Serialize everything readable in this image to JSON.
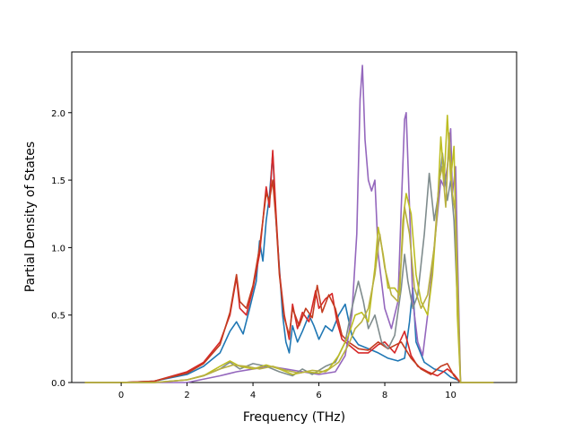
{
  "chart_data": {
    "type": "line",
    "title": "",
    "xlabel": "Frequency (THz)",
    "ylabel": "Partial Density of States",
    "xlim": [
      -1.5,
      12.0
    ],
    "ylim": [
      0,
      2.45
    ],
    "xticks": [
      0,
      2,
      4,
      6,
      8,
      10
    ],
    "yticks": [
      0.0,
      0.5,
      1.0,
      1.5,
      2.0
    ],
    "xtick_labels": [
      "0",
      "2",
      "4",
      "6",
      "8",
      "10"
    ],
    "ytick_labels": [
      "0.0",
      "0.5",
      "1.0",
      "1.5",
      "2.0"
    ],
    "grid": false,
    "legend": "none",
    "series": [
      {
        "color": "#1f77b4",
        "points": [
          [
            -1.1,
            0
          ],
          [
            0,
            0
          ],
          [
            1,
            0.01
          ],
          [
            2,
            0.06
          ],
          [
            2.5,
            0.12
          ],
          [
            3,
            0.22
          ],
          [
            3.3,
            0.38
          ],
          [
            3.5,
            0.45
          ],
          [
            3.7,
            0.36
          ],
          [
            3.9,
            0.55
          ],
          [
            4.1,
            0.75
          ],
          [
            4.2,
            1.05
          ],
          [
            4.3,
            0.9
          ],
          [
            4.4,
            1.2
          ],
          [
            4.5,
            1.38
          ],
          [
            4.6,
            1.7
          ],
          [
            4.7,
            1.2
          ],
          [
            4.8,
            0.85
          ],
          [
            4.9,
            0.5
          ],
          [
            5.0,
            0.3
          ],
          [
            5.1,
            0.22
          ],
          [
            5.2,
            0.42
          ],
          [
            5.35,
            0.3
          ],
          [
            5.5,
            0.38
          ],
          [
            5.7,
            0.5
          ],
          [
            5.85,
            0.42
          ],
          [
            6.0,
            0.32
          ],
          [
            6.2,
            0.42
          ],
          [
            6.4,
            0.38
          ],
          [
            6.6,
            0.5
          ],
          [
            6.8,
            0.58
          ],
          [
            7.0,
            0.35
          ],
          [
            7.2,
            0.28
          ],
          [
            7.5,
            0.25
          ],
          [
            7.8,
            0.22
          ],
          [
            8.1,
            0.18
          ],
          [
            8.4,
            0.16
          ],
          [
            8.6,
            0.18
          ],
          [
            8.75,
            0.45
          ],
          [
            8.85,
            0.7
          ],
          [
            8.95,
            0.3
          ],
          [
            9.2,
            0.15
          ],
          [
            9.5,
            0.1
          ],
          [
            9.8,
            0.08
          ],
          [
            10.0,
            0.04
          ],
          [
            10.2,
            0.02
          ],
          [
            10.3,
            0
          ],
          [
            11.3,
            0
          ]
        ]
      },
      {
        "color": "#d62728",
        "points": [
          [
            -1.1,
            0
          ],
          [
            0,
            0
          ],
          [
            1,
            0.01
          ],
          [
            2,
            0.08
          ],
          [
            2.5,
            0.15
          ],
          [
            3,
            0.3
          ],
          [
            3.3,
            0.5
          ],
          [
            3.5,
            0.78
          ],
          [
            3.6,
            0.55
          ],
          [
            3.8,
            0.5
          ],
          [
            4.0,
            0.7
          ],
          [
            4.2,
            0.95
          ],
          [
            4.4,
            1.45
          ],
          [
            4.5,
            1.3
          ],
          [
            4.6,
            1.72
          ],
          [
            4.7,
            1.25
          ],
          [
            4.8,
            0.82
          ],
          [
            4.95,
            0.5
          ],
          [
            5.1,
            0.32
          ],
          [
            5.2,
            0.58
          ],
          [
            5.35,
            0.4
          ],
          [
            5.5,
            0.52
          ],
          [
            5.7,
            0.45
          ],
          [
            5.9,
            0.68
          ],
          [
            6.0,
            0.55
          ],
          [
            6.2,
            0.62
          ],
          [
            6.4,
            0.66
          ],
          [
            6.55,
            0.45
          ],
          [
            6.7,
            0.32
          ],
          [
            6.9,
            0.28
          ],
          [
            7.2,
            0.22
          ],
          [
            7.5,
            0.22
          ],
          [
            7.8,
            0.28
          ],
          [
            8.0,
            0.3
          ],
          [
            8.3,
            0.22
          ],
          [
            8.6,
            0.38
          ],
          [
            8.8,
            0.2
          ],
          [
            9.0,
            0.12
          ],
          [
            9.3,
            0.08
          ],
          [
            9.6,
            0.05
          ],
          [
            9.9,
            0.1
          ],
          [
            10.1,
            0.06
          ],
          [
            10.3,
            0
          ],
          [
            11.3,
            0
          ]
        ]
      },
      {
        "color": "#c33c20",
        "points": [
          [
            -1.1,
            0
          ],
          [
            0,
            0
          ],
          [
            1,
            0.01
          ],
          [
            2,
            0.07
          ],
          [
            2.5,
            0.14
          ],
          [
            3,
            0.28
          ],
          [
            3.3,
            0.52
          ],
          [
            3.5,
            0.8
          ],
          [
            3.6,
            0.6
          ],
          [
            3.8,
            0.55
          ],
          [
            4.0,
            0.72
          ],
          [
            4.2,
            1.0
          ],
          [
            4.4,
            1.4
          ],
          [
            4.5,
            1.35
          ],
          [
            4.6,
            1.5
          ],
          [
            4.7,
            1.2
          ],
          [
            4.8,
            0.8
          ],
          [
            4.95,
            0.48
          ],
          [
            5.1,
            0.35
          ],
          [
            5.2,
            0.55
          ],
          [
            5.4,
            0.42
          ],
          [
            5.6,
            0.55
          ],
          [
            5.8,
            0.48
          ],
          [
            5.95,
            0.72
          ],
          [
            6.1,
            0.52
          ],
          [
            6.3,
            0.65
          ],
          [
            6.5,
            0.55
          ],
          [
            6.7,
            0.35
          ],
          [
            6.9,
            0.3
          ],
          [
            7.2,
            0.25
          ],
          [
            7.5,
            0.24
          ],
          [
            7.8,
            0.3
          ],
          [
            8.1,
            0.25
          ],
          [
            8.5,
            0.3
          ],
          [
            8.8,
            0.18
          ],
          [
            9.1,
            0.1
          ],
          [
            9.4,
            0.06
          ],
          [
            9.7,
            0.12
          ],
          [
            9.9,
            0.14
          ],
          [
            10.1,
            0.05
          ],
          [
            10.3,
            0
          ],
          [
            11.3,
            0
          ]
        ]
      },
      {
        "color": "#9467bd",
        "points": [
          [
            -1.1,
            0
          ],
          [
            0,
            0
          ],
          [
            2,
            0
          ],
          [
            3,
            0.05
          ],
          [
            3.5,
            0.08
          ],
          [
            4,
            0.1
          ],
          [
            4.5,
            0.12
          ],
          [
            5,
            0.1
          ],
          [
            5.5,
            0.08
          ],
          [
            6,
            0.06
          ],
          [
            6.5,
            0.08
          ],
          [
            6.8,
            0.2
          ],
          [
            7.0,
            0.5
          ],
          [
            7.15,
            1.1
          ],
          [
            7.25,
            2.1
          ],
          [
            7.32,
            2.35
          ],
          [
            7.4,
            1.8
          ],
          [
            7.5,
            1.5
          ],
          [
            7.6,
            1.42
          ],
          [
            7.7,
            1.5
          ],
          [
            7.8,
            0.95
          ],
          [
            8.0,
            0.55
          ],
          [
            8.2,
            0.4
          ],
          [
            8.4,
            0.6
          ],
          [
            8.5,
            1.3
          ],
          [
            8.6,
            1.95
          ],
          [
            8.65,
            2.0
          ],
          [
            8.75,
            1.3
          ],
          [
            8.85,
            0.6
          ],
          [
            9.0,
            0.3
          ],
          [
            9.15,
            0.2
          ],
          [
            9.3,
            0.5
          ],
          [
            9.5,
            1.0
          ],
          [
            9.7,
            1.5
          ],
          [
            9.8,
            1.45
          ],
          [
            9.9,
            1.6
          ],
          [
            10.0,
            1.88
          ],
          [
            10.05,
            1.4
          ],
          [
            10.15,
            1.6
          ],
          [
            10.2,
            1.0
          ],
          [
            10.3,
            0
          ],
          [
            11.3,
            0
          ]
        ]
      },
      {
        "color": "#7f8c8d",
        "points": [
          [
            -1.1,
            0
          ],
          [
            0,
            0
          ],
          [
            1,
            0
          ],
          [
            2,
            0.02
          ],
          [
            2.5,
            0.05
          ],
          [
            3,
            0.1
          ],
          [
            3.3,
            0.15
          ],
          [
            3.6,
            0.1
          ],
          [
            4,
            0.14
          ],
          [
            4.4,
            0.12
          ],
          [
            4.8,
            0.08
          ],
          [
            5.2,
            0.05
          ],
          [
            5.5,
            0.1
          ],
          [
            5.8,
            0.06
          ],
          [
            6.2,
            0.12
          ],
          [
            6.5,
            0.15
          ],
          [
            6.8,
            0.3
          ],
          [
            7.0,
            0.55
          ],
          [
            7.2,
            0.75
          ],
          [
            7.35,
            0.6
          ],
          [
            7.5,
            0.4
          ],
          [
            7.7,
            0.5
          ],
          [
            7.9,
            0.3
          ],
          [
            8.1,
            0.25
          ],
          [
            8.3,
            0.35
          ],
          [
            8.5,
            0.7
          ],
          [
            8.6,
            0.95
          ],
          [
            8.7,
            0.75
          ],
          [
            8.85,
            0.55
          ],
          [
            9.0,
            0.65
          ],
          [
            9.2,
            1.1
          ],
          [
            9.35,
            1.55
          ],
          [
            9.5,
            1.2
          ],
          [
            9.6,
            1.35
          ],
          [
            9.75,
            1.7
          ],
          [
            9.9,
            1.35
          ],
          [
            10.0,
            1.5
          ],
          [
            10.1,
            1.2
          ],
          [
            10.2,
            0.6
          ],
          [
            10.3,
            0
          ],
          [
            11.3,
            0
          ]
        ]
      },
      {
        "color": "#bcbd22",
        "points": [
          [
            -1.1,
            0
          ],
          [
            0,
            0
          ],
          [
            1,
            0
          ],
          [
            2,
            0.02
          ],
          [
            2.5,
            0.05
          ],
          [
            3,
            0.12
          ],
          [
            3.3,
            0.16
          ],
          [
            3.6,
            0.12
          ],
          [
            4,
            0.1
          ],
          [
            4.4,
            0.13
          ],
          [
            4.8,
            0.1
          ],
          [
            5.2,
            0.06
          ],
          [
            5.6,
            0.08
          ],
          [
            6.0,
            0.07
          ],
          [
            6.3,
            0.1
          ],
          [
            6.6,
            0.2
          ],
          [
            6.9,
            0.35
          ],
          [
            7.1,
            0.5
          ],
          [
            7.3,
            0.52
          ],
          [
            7.5,
            0.45
          ],
          [
            7.7,
            0.85
          ],
          [
            7.8,
            1.15
          ],
          [
            7.95,
            0.95
          ],
          [
            8.1,
            0.7
          ],
          [
            8.3,
            0.7
          ],
          [
            8.45,
            0.65
          ],
          [
            8.55,
            1.2
          ],
          [
            8.65,
            1.4
          ],
          [
            8.8,
            1.25
          ],
          [
            8.95,
            0.8
          ],
          [
            9.1,
            0.6
          ],
          [
            9.3,
            0.5
          ],
          [
            9.45,
            0.8
          ],
          [
            9.6,
            1.3
          ],
          [
            9.7,
            1.82
          ],
          [
            9.8,
            1.5
          ],
          [
            9.9,
            1.98
          ],
          [
            10.0,
            1.5
          ],
          [
            10.1,
            1.75
          ],
          [
            10.2,
            0.5
          ],
          [
            10.3,
            0
          ],
          [
            11.3,
            0
          ]
        ]
      },
      {
        "color": "#b8b040",
        "points": [
          [
            -1.1,
            0
          ],
          [
            0,
            0
          ],
          [
            1,
            0
          ],
          [
            2,
            0.02
          ],
          [
            2.6,
            0.06
          ],
          [
            3,
            0.1
          ],
          [
            3.4,
            0.13
          ],
          [
            3.8,
            0.12
          ],
          [
            4.2,
            0.1
          ],
          [
            4.6,
            0.12
          ],
          [
            5.0,
            0.09
          ],
          [
            5.4,
            0.07
          ],
          [
            5.8,
            0.09
          ],
          [
            6.2,
            0.08
          ],
          [
            6.6,
            0.15
          ],
          [
            6.9,
            0.28
          ],
          [
            7.1,
            0.4
          ],
          [
            7.3,
            0.45
          ],
          [
            7.5,
            0.55
          ],
          [
            7.7,
            0.8
          ],
          [
            7.85,
            1.1
          ],
          [
            8.0,
            0.85
          ],
          [
            8.2,
            0.65
          ],
          [
            8.4,
            0.6
          ],
          [
            8.5,
            0.9
          ],
          [
            8.6,
            1.3
          ],
          [
            8.75,
            1.1
          ],
          [
            8.9,
            0.7
          ],
          [
            9.1,
            0.55
          ],
          [
            9.3,
            0.65
          ],
          [
            9.5,
            1.0
          ],
          [
            9.65,
            1.5
          ],
          [
            9.75,
            1.6
          ],
          [
            9.85,
            1.3
          ],
          [
            9.95,
            1.85
          ],
          [
            10.05,
            1.4
          ],
          [
            10.15,
            1.25
          ],
          [
            10.25,
            0.4
          ],
          [
            10.3,
            0
          ],
          [
            11.3,
            0
          ]
        ]
      }
    ]
  }
}
